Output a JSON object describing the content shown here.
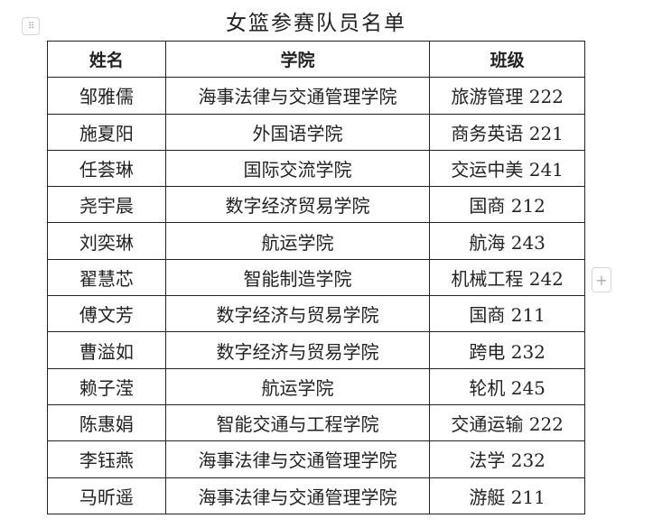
{
  "title": "女篮参赛队员名单",
  "table": {
    "headers": [
      "姓名",
      "学院",
      "班级"
    ],
    "rows": [
      [
        "邹雅儒",
        "海事法律与交通管理学院",
        "旅游管理 222"
      ],
      [
        "施夏阳",
        "外国语学院",
        "商务英语 221"
      ],
      [
        "任荟琳",
        "国际交流学院",
        "交运中美 241"
      ],
      [
        "尧宇晨",
        "数字经济贸易学院",
        "国商 212"
      ],
      [
        "刘奕琳",
        "航运学院",
        "航海 243"
      ],
      [
        "翟慧芯",
        "智能制造学院",
        "机械工程 242"
      ],
      [
        "傅文芳",
        "数字经济与贸易学院",
        "国商 211"
      ],
      [
        "曹溢如",
        "数字经济与贸易学院",
        "跨电 232"
      ],
      [
        "赖子滢",
        "航运学院",
        "轮机 245"
      ],
      [
        "陈惠娟",
        "智能交通与工程学院",
        "交通运输 222"
      ],
      [
        "李钰燕",
        "海事法律与交通管理学院",
        "法学 232"
      ],
      [
        "马昕遥",
        "海事法律与交通管理学院",
        "游艇 211"
      ]
    ]
  },
  "icons": {
    "drag_handle": "drag-handle-icon",
    "add_column": "plus-icon"
  }
}
